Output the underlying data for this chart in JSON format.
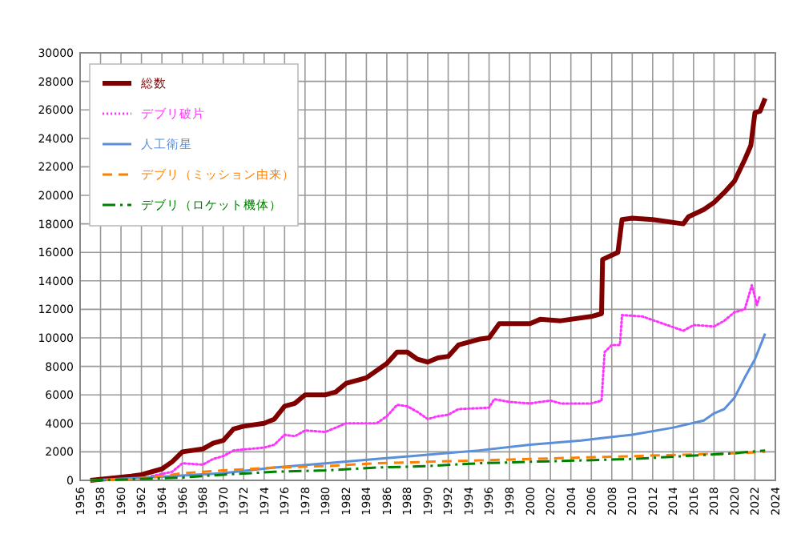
{
  "chart_data": {
    "type": "line",
    "xlim": [
      1956,
      2024
    ],
    "xticks": [
      1956,
      1958,
      1960,
      1962,
      1964,
      1966,
      1968,
      1970,
      1972,
      1974,
      1976,
      1978,
      1980,
      1982,
      1984,
      1986,
      1988,
      1990,
      1992,
      1994,
      1996,
      1998,
      2000,
      2002,
      2004,
      2006,
      2008,
      2010,
      2012,
      2014,
      2016,
      2018,
      2020,
      2022,
      2024
    ],
    "ylim": [
      0,
      30000
    ],
    "yticks": [
      0,
      2000,
      4000,
      6000,
      8000,
      10000,
      12000,
      14000,
      16000,
      18000,
      20000,
      22000,
      24000,
      26000,
      28000,
      30000
    ],
    "grid": true,
    "legend": "top left",
    "series": [
      {
        "name": "総数",
        "color": "#800000",
        "line_style": "solid",
        "x": [
          1957,
          1961,
          1962,
          1964,
          1965,
          1966,
          1968,
          1969,
          1970,
          1971,
          1972,
          1974,
          1975,
          1976,
          1977,
          1978,
          1980,
          1981,
          1982,
          1984,
          1986,
          1987,
          1988,
          1989,
          1990,
          1991,
          1992,
          1993,
          1995,
          1996,
          1997,
          2000,
          2001,
          2003,
          2006,
          2007,
          2007.1,
          2008,
          2008.6,
          2009,
          2010,
          2012,
          2015,
          2015.5,
          2017,
          2018,
          2019,
          2020,
          2021,
          2021.6,
          2022,
          2022.5,
          2023
        ],
        "values": [
          0,
          300,
          400,
          800,
          1300,
          2000,
          2200,
          2600,
          2800,
          3600,
          3800,
          4000,
          4300,
          5200,
          5400,
          6000,
          6000,
          6200,
          6800,
          7200,
          8200,
          9000,
          9000,
          8500,
          8300,
          8600,
          8700,
          9500,
          9900,
          10000,
          11000,
          11000,
          11300,
          11200,
          11500,
          11700,
          15500,
          15800,
          16000,
          18300,
          18400,
          18300,
          18000,
          18500,
          19000,
          19500,
          20200,
          21000,
          22500,
          23500,
          25800,
          25900,
          26800
        ]
      },
      {
        "name": "デブリ破片",
        "color": "#ff33ff",
        "line_style": "dotted",
        "x": [
          1963,
          1965,
          1966,
          1968,
          1969,
          1970,
          1971,
          1974,
          1975,
          1976,
          1977,
          1978,
          1980,
          1981,
          1982,
          1985,
          1986,
          1987,
          1988,
          1989,
          1990,
          1991,
          1992,
          1993,
          1996,
          1996.5,
          1998,
          2000,
          2002,
          2003,
          2006,
          2007,
          2007.3,
          2008,
          2008.8,
          2009,
          2011,
          2013,
          2015,
          2016,
          2018,
          2019,
          2020,
          2021,
          2021.7,
          2022.2,
          2022.5
        ],
        "values": [
          300,
          600,
          1200,
          1100,
          1500,
          1700,
          2100,
          2300,
          2500,
          3200,
          3100,
          3500,
          3400,
          3700,
          4000,
          4000,
          4500,
          5300,
          5200,
          4800,
          4300,
          4500,
          4600,
          5000,
          5100,
          5700,
          5500,
          5400,
          5600,
          5400,
          5400,
          5600,
          9000,
          9500,
          9500,
          11600,
          11500,
          11000,
          10500,
          10900,
          10800,
          11200,
          11800,
          12000,
          13700,
          12300,
          13000
        ]
      },
      {
        "name": "人工衛星",
        "color": "#5b8fd9",
        "line_style": "solid",
        "x": [
          1957,
          1965,
          1970,
          1975,
          1980,
          1985,
          1990,
          1995,
          2000,
          2005,
          2010,
          2014,
          2017,
          2018,
          2019,
          2020,
          2021,
          2022,
          2023
        ],
        "values": [
          0,
          300,
          500,
          900,
          1200,
          1500,
          1800,
          2100,
          2500,
          2800,
          3200,
          3700,
          4200,
          4700,
          5000,
          5800,
          7200,
          8500,
          10300
        ]
      },
      {
        "name": "デブリ（ミッション由来）",
        "color": "#ff8000",
        "line_style": "dashed",
        "x": [
          1957,
          1962,
          1966,
          1970,
          1975,
          1980,
          1985,
          1990,
          1995,
          2000,
          2005,
          2010,
          2015,
          2020,
          2023
        ],
        "values": [
          0,
          100,
          500,
          700,
          900,
          1000,
          1200,
          1300,
          1400,
          1500,
          1600,
          1700,
          1800,
          1900,
          2000
        ]
      },
      {
        "name": "デブリ（ロケット機体）",
        "color": "#008000",
        "line_style": "dashdot",
        "x": [
          1957,
          1962,
          1966,
          1970,
          1975,
          1980,
          1985,
          1990,
          1995,
          2000,
          2005,
          2010,
          2015,
          2020,
          2023
        ],
        "values": [
          0,
          100,
          200,
          400,
          600,
          700,
          900,
          1000,
          1200,
          1300,
          1400,
          1500,
          1700,
          1900,
          2100
        ]
      }
    ]
  }
}
